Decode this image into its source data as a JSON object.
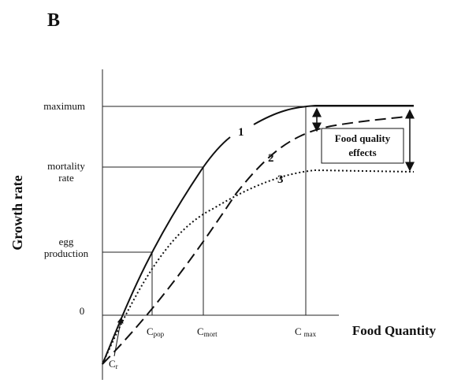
{
  "panel_label": "B",
  "y_axis_title": "Growth rate",
  "x_axis_title": "Food Quantity",
  "y_labels": {
    "maximum": "maximum",
    "mortality": [
      "mortality",
      "rate"
    ],
    "egg": [
      "egg",
      "production"
    ],
    "zero": "0"
  },
  "x_labels": {
    "pop": {
      "base": "C",
      "sub": "pop"
    },
    "mort": {
      "base": "C",
      "sub": "mort"
    },
    "max": {
      "base": "C",
      "sub": "max"
    },
    "r": {
      "base": "C",
      "sub": "r"
    }
  },
  "curve_labels": [
    "1",
    "2",
    "3"
  ],
  "box_text": [
    "Food quality",
    "effects"
  ]
}
